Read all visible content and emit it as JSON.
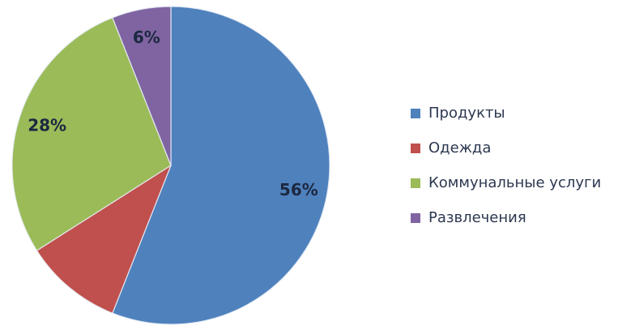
{
  "figure": {
    "background_color": "#FFFFFF"
  },
  "chart_data": {
    "type": "pie",
    "categories": [
      "Продукты",
      "Одежда",
      "Коммунальные услуги",
      "Развлечения"
    ],
    "values": [
      56,
      10,
      28,
      6
    ],
    "unit": "%",
    "colors": [
      "#4F81BD",
      "#C0504D",
      "#9BBB59",
      "#8064A2"
    ],
    "data_labels": [
      "56%",
      null,
      "28%",
      "6%"
    ],
    "label_color": "#1C2840",
    "slice_border_color": "#E7EDF6",
    "start_angle_deg": 0,
    "direction": "clockwise",
    "legend_position": "right",
    "legend": {
      "text_color": "#2C3850",
      "items": [
        {
          "label": "Продукты",
          "color": "#4F81BD"
        },
        {
          "label": "Одежда",
          "color": "#C0504D"
        },
        {
          "label": "Коммунальные услуги",
          "color": "#9BBB59"
        },
        {
          "label": "Развлечения",
          "color": "#8064A2"
        }
      ]
    }
  }
}
